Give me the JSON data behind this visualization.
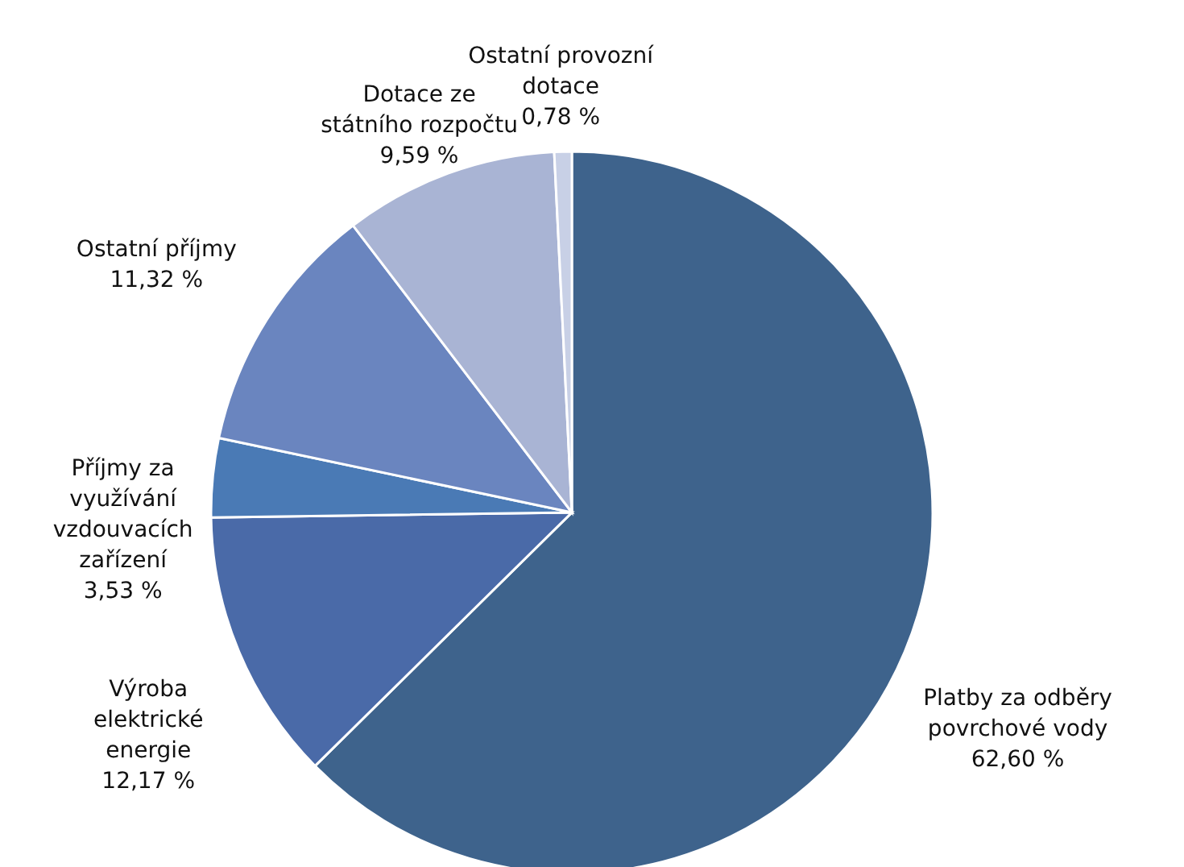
{
  "chart_data": {
    "type": "pie",
    "categories": [
      "Platby za odběry povrchové vody",
      "Výroba elektrické energie",
      "Příjmy za využívání vzdouvacích zařízení",
      "Ostatní příjmy",
      "Dotace ze státního rozpočtu",
      "Ostatní provozní dotace"
    ],
    "values": [
      62.6,
      12.17,
      3.53,
      11.32,
      9.59,
      0.78
    ],
    "value_labels": [
      "62,60 %",
      "12,17 %",
      "3,53 %",
      "11,32 %",
      "9,59 %",
      "0,78 %"
    ],
    "colors": [
      "#3e638c",
      "#4a6aa8",
      "#4a7ab5",
      "#6a85bf",
      "#a9b4d4",
      "#c8d0e6"
    ]
  }
}
